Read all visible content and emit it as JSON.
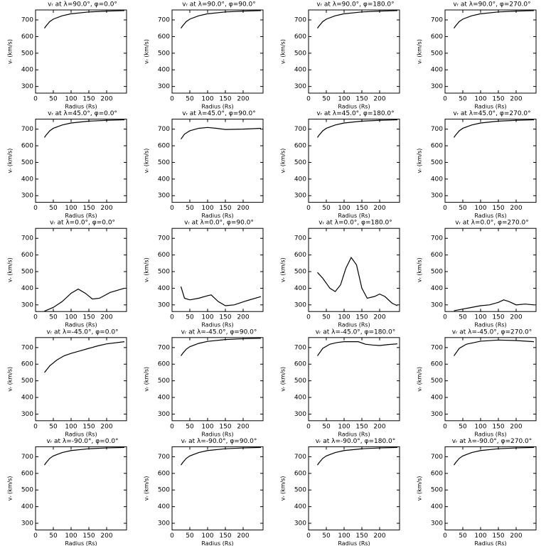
{
  "chart_data": [
    {
      "type": "line",
      "title": "vᵣ at λ=90.0°, φ=0.0°",
      "xlabel": "Radius (Rs)",
      "ylabel": "vᵣ (km/s)",
      "xlim": [
        0,
        256
      ],
      "ylim": [
        260,
        760
      ],
      "xticks": [
        0,
        50,
        100,
        150,
        200
      ],
      "yticks": [
        300,
        400,
        500,
        600,
        700
      ],
      "x": [
        25,
        30,
        40,
        50,
        75,
        100,
        150,
        200,
        250
      ],
      "values": [
        650,
        665,
        690,
        705,
        725,
        737,
        748,
        753,
        756
      ]
    },
    {
      "type": "line",
      "title": "vᵣ at λ=90.0°, φ=90.0°",
      "xlabel": "Radius (Rs)",
      "ylabel": "vᵣ (km/s)",
      "xlim": [
        0,
        256
      ],
      "ylim": [
        260,
        760
      ],
      "xticks": [
        0,
        50,
        100,
        150,
        200
      ],
      "yticks": [
        300,
        400,
        500,
        600,
        700
      ],
      "x": [
        25,
        30,
        40,
        50,
        75,
        100,
        150,
        200,
        250
      ],
      "values": [
        650,
        665,
        690,
        705,
        725,
        737,
        748,
        753,
        756
      ]
    },
    {
      "type": "line",
      "title": "vᵣ at λ=90.0°, φ=180.0°",
      "xlabel": "Radius (Rs)",
      "ylabel": "vᵣ (km/s)",
      "xlim": [
        0,
        256
      ],
      "ylim": [
        260,
        760
      ],
      "xticks": [
        0,
        50,
        100,
        150,
        200
      ],
      "yticks": [
        300,
        400,
        500,
        600,
        700
      ],
      "x": [
        25,
        30,
        40,
        50,
        75,
        100,
        150,
        200,
        250
      ],
      "values": [
        650,
        665,
        690,
        705,
        725,
        737,
        748,
        753,
        756
      ]
    },
    {
      "type": "line",
      "title": "vᵣ at λ=90.0°, φ=270.0°",
      "xlabel": "Radius (Rs)",
      "ylabel": "vᵣ (km/s)",
      "xlim": [
        0,
        256
      ],
      "ylim": [
        260,
        760
      ],
      "xticks": [
        0,
        50,
        100,
        150,
        200
      ],
      "yticks": [
        300,
        400,
        500,
        600,
        700
      ],
      "x": [
        25,
        30,
        40,
        50,
        75,
        100,
        150,
        200,
        250
      ],
      "values": [
        650,
        665,
        690,
        705,
        725,
        737,
        748,
        753,
        756
      ]
    },
    {
      "type": "line",
      "title": "vᵣ at λ=45.0°, φ=0.0°",
      "xlabel": "Radius (Rs)",
      "ylabel": "vᵣ (km/s)",
      "xlim": [
        0,
        256
      ],
      "ylim": [
        260,
        760
      ],
      "xticks": [
        0,
        50,
        100,
        150,
        200
      ],
      "yticks": [
        300,
        400,
        500,
        600,
        700
      ],
      "x": [
        25,
        30,
        40,
        50,
        75,
        100,
        150,
        200,
        250
      ],
      "values": [
        650,
        665,
        690,
        705,
        725,
        737,
        748,
        753,
        756
      ]
    },
    {
      "type": "line",
      "title": "vᵣ at λ=45.0°, φ=90.0°",
      "xlabel": "Radius (Rs)",
      "ylabel": "vᵣ (km/s)",
      "xlim": [
        0,
        256
      ],
      "ylim": [
        260,
        760
      ],
      "xticks": [
        0,
        50,
        100,
        150,
        200
      ],
      "yticks": [
        300,
        400,
        500,
        600,
        700
      ],
      "x": [
        25,
        35,
        50,
        75,
        100,
        125,
        150,
        200,
        250
      ],
      "values": [
        640,
        670,
        690,
        705,
        710,
        705,
        698,
        700,
        705
      ]
    },
    {
      "type": "line",
      "title": "vᵣ at λ=45.0°, φ=180.0°",
      "xlabel": "Radius (Rs)",
      "ylabel": "vᵣ (km/s)",
      "xlim": [
        0,
        256
      ],
      "ylim": [
        260,
        760
      ],
      "xticks": [
        0,
        50,
        100,
        150,
        200
      ],
      "yticks": [
        300,
        400,
        500,
        600,
        700
      ],
      "x": [
        25,
        30,
        40,
        50,
        75,
        100,
        150,
        200,
        250
      ],
      "values": [
        650,
        665,
        690,
        705,
        725,
        737,
        748,
        753,
        756
      ]
    },
    {
      "type": "line",
      "title": "vᵣ at λ=45.0°, φ=270.0°",
      "xlabel": "Radius (Rs)",
      "ylabel": "vᵣ (km/s)",
      "xlim": [
        0,
        256
      ],
      "ylim": [
        260,
        760
      ],
      "xticks": [
        0,
        50,
        100,
        150,
        200
      ],
      "yticks": [
        300,
        400,
        500,
        600,
        700
      ],
      "x": [
        25,
        30,
        40,
        50,
        75,
        100,
        150,
        200,
        250
      ],
      "values": [
        650,
        665,
        690,
        705,
        725,
        737,
        748,
        753,
        756
      ]
    },
    {
      "type": "line",
      "title": "vᵣ at λ=0.0°, φ=0.0°",
      "xlabel": "Radius (Rs)",
      "ylabel": "vᵣ (km/s)",
      "xlim": [
        0,
        256
      ],
      "ylim": [
        260,
        760
      ],
      "xticks": [
        0,
        50,
        100,
        150,
        200
      ],
      "yticks": [
        300,
        400,
        500,
        600,
        700
      ],
      "x": [
        25,
        50,
        75,
        100,
        120,
        140,
        160,
        180,
        210,
        250
      ],
      "values": [
        262,
        285,
        320,
        370,
        395,
        370,
        335,
        340,
        375,
        400
      ]
    },
    {
      "type": "line",
      "title": "vᵣ at λ=0.0°, φ=90.0°",
      "xlabel": "Radius (Rs)",
      "ylabel": "vᵣ (km/s)",
      "xlim": [
        0,
        256
      ],
      "ylim": [
        260,
        760
      ],
      "xticks": [
        0,
        50,
        100,
        150,
        200
      ],
      "yticks": [
        300,
        400,
        500,
        600,
        700
      ],
      "x": [
        25,
        35,
        50,
        75,
        100,
        110,
        130,
        150,
        175,
        210,
        250
      ],
      "values": [
        410,
        340,
        330,
        340,
        355,
        360,
        320,
        295,
        300,
        325,
        350
      ]
    },
    {
      "type": "line",
      "title": "vᵣ at λ=0.0°, φ=180.0°",
      "xlabel": "Radius (Rs)",
      "ylabel": "vᵣ (km/s)",
      "xlim": [
        0,
        256
      ],
      "ylim": [
        260,
        760
      ],
      "xticks": [
        0,
        50,
        100,
        150,
        200
      ],
      "yticks": [
        300,
        400,
        500,
        600,
        700
      ],
      "x": [
        25,
        40,
        60,
        75,
        90,
        105,
        120,
        135,
        150,
        165,
        185,
        200,
        215,
        235,
        250
      ],
      "values": [
        495,
        460,
        400,
        380,
        420,
        520,
        585,
        540,
        400,
        340,
        350,
        365,
        350,
        310,
        295
      ]
    },
    {
      "type": "line",
      "title": "vᵣ at λ=0.0°, φ=270.0°",
      "xlabel": "Radius (Rs)",
      "ylabel": "vᵣ (km/s)",
      "xlim": [
        0,
        256
      ],
      "ylim": [
        260,
        760
      ],
      "xticks": [
        0,
        50,
        100,
        150,
        200
      ],
      "yticks": [
        300,
        400,
        500,
        600,
        700
      ],
      "x": [
        25,
        50,
        75,
        100,
        125,
        150,
        165,
        180,
        200,
        225,
        250
      ],
      "values": [
        265,
        275,
        285,
        295,
        300,
        315,
        330,
        320,
        300,
        305,
        300
      ]
    },
    {
      "type": "line",
      "title": "vᵣ at λ=-45.0°, φ=0.0°",
      "xlabel": "Radius (Rs)",
      "ylabel": "vᵣ (km/s)",
      "xlim": [
        0,
        256
      ],
      "ylim": [
        260,
        760
      ],
      "xticks": [
        0,
        50,
        100,
        150,
        200
      ],
      "yticks": [
        300,
        400,
        500,
        600,
        700
      ],
      "x": [
        25,
        40,
        60,
        80,
        100,
        125,
        150,
        175,
        200,
        250
      ],
      "values": [
        550,
        590,
        625,
        650,
        665,
        680,
        695,
        710,
        722,
        735
      ]
    },
    {
      "type": "line",
      "title": "vᵣ at λ=-45.0°, φ=90.0°",
      "xlabel": "Radius (Rs)",
      "ylabel": "vᵣ (km/s)",
      "xlim": [
        0,
        256
      ],
      "ylim": [
        260,
        760
      ],
      "xticks": [
        0,
        50,
        100,
        150,
        200
      ],
      "yticks": [
        300,
        400,
        500,
        600,
        700
      ],
      "x": [
        25,
        30,
        40,
        50,
        75,
        100,
        150,
        200,
        250
      ],
      "values": [
        650,
        665,
        690,
        705,
        725,
        737,
        748,
        753,
        756
      ]
    },
    {
      "type": "line",
      "title": "vᵣ at λ=-45.0°, φ=180.0°",
      "xlabel": "Radius (Rs)",
      "ylabel": "vᵣ (km/s)",
      "xlim": [
        0,
        256
      ],
      "ylim": [
        260,
        760
      ],
      "xticks": [
        0,
        50,
        100,
        150,
        200
      ],
      "yticks": [
        300,
        400,
        500,
        600,
        700
      ],
      "x": [
        25,
        40,
        60,
        80,
        100,
        140,
        160,
        180,
        200,
        225,
        250
      ],
      "values": [
        650,
        695,
        720,
        730,
        735,
        735,
        720,
        715,
        712,
        718,
        722
      ]
    },
    {
      "type": "line",
      "title": "vᵣ at λ=-45.0°, φ=270.0°",
      "xlabel": "Radius (Rs)",
      "ylabel": "vᵣ (km/s)",
      "xlim": [
        0,
        256
      ],
      "ylim": [
        260,
        760
      ],
      "xticks": [
        0,
        50,
        100,
        150,
        200
      ],
      "yticks": [
        300,
        400,
        500,
        600,
        700
      ],
      "x": [
        25,
        40,
        60,
        100,
        150,
        200,
        250
      ],
      "values": [
        650,
        695,
        720,
        738,
        745,
        742,
        735
      ]
    },
    {
      "type": "line",
      "title": "vᵣ at λ=-90.0°, φ=0.0°",
      "xlabel": "Radius (Rs)",
      "ylabel": "vᵣ (km/s)",
      "xlim": [
        0,
        256
      ],
      "ylim": [
        260,
        760
      ],
      "xticks": [
        0,
        50,
        100,
        150,
        200
      ],
      "yticks": [
        300,
        400,
        500,
        600,
        700
      ],
      "x": [
        25,
        30,
        40,
        50,
        75,
        100,
        150,
        200,
        250
      ],
      "values": [
        650,
        665,
        690,
        705,
        725,
        737,
        748,
        753,
        756
      ]
    },
    {
      "type": "line",
      "title": "vᵣ at λ=-90.0°, φ=90.0°",
      "xlabel": "Radius (Rs)",
      "ylabel": "vᵣ (km/s)",
      "xlim": [
        0,
        256
      ],
      "ylim": [
        260,
        760
      ],
      "xticks": [
        0,
        50,
        100,
        150,
        200
      ],
      "yticks": [
        300,
        400,
        500,
        600,
        700
      ],
      "x": [
        25,
        30,
        40,
        50,
        75,
        100,
        150,
        200,
        250
      ],
      "values": [
        650,
        665,
        690,
        705,
        725,
        737,
        748,
        753,
        756
      ]
    },
    {
      "type": "line",
      "title": "vᵣ at λ=-90.0°, φ=180.0°",
      "xlabel": "Radius (Rs)",
      "ylabel": "vᵣ (km/s)",
      "xlim": [
        0,
        256
      ],
      "ylim": [
        260,
        760
      ],
      "xticks": [
        0,
        50,
        100,
        150,
        200
      ],
      "yticks": [
        300,
        400,
        500,
        600,
        700
      ],
      "x": [
        25,
        30,
        40,
        50,
        75,
        100,
        150,
        200,
        250
      ],
      "values": [
        650,
        665,
        690,
        705,
        725,
        737,
        748,
        753,
        756
      ]
    },
    {
      "type": "line",
      "title": "vᵣ at λ=-90.0°, φ=270.0°",
      "xlabel": "Radius (Rs)",
      "ylabel": "vᵣ (km/s)",
      "xlim": [
        0,
        256
      ],
      "ylim": [
        260,
        760
      ],
      "xticks": [
        0,
        50,
        100,
        150,
        200
      ],
      "yticks": [
        300,
        400,
        500,
        600,
        700
      ],
      "x": [
        25,
        30,
        40,
        50,
        75,
        100,
        150,
        200,
        250
      ],
      "values": [
        650,
        665,
        690,
        705,
        725,
        737,
        748,
        753,
        756
      ]
    }
  ]
}
